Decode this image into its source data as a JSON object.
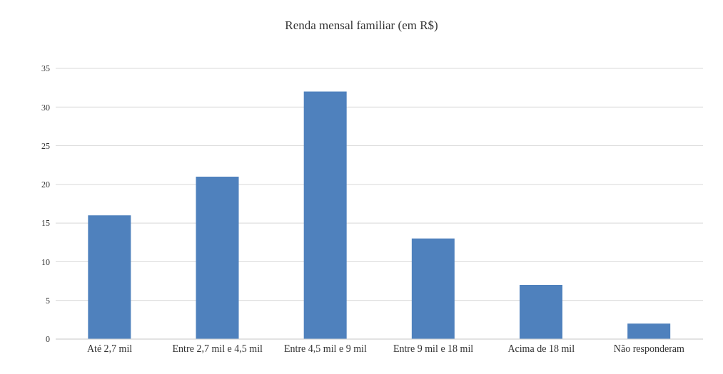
{
  "chart_data": {
    "type": "bar",
    "title": "Renda mensal familiar (em R$)",
    "categories": [
      "Até 2,7 mil",
      "Entre 2,7 mil e 4,5 mil",
      "Entre 4,5 mil e 9 mil",
      "Entre 9 mil e 18 mil",
      "Acima de 18 mil",
      "Não responderam"
    ],
    "values": [
      16,
      21,
      32,
      13,
      7,
      2
    ],
    "color": "#4f81bd",
    "ylim": [
      0,
      35
    ],
    "yticks": [
      0,
      5,
      10,
      15,
      20,
      25,
      30,
      35
    ],
    "grid": "y",
    "legend": false
  }
}
